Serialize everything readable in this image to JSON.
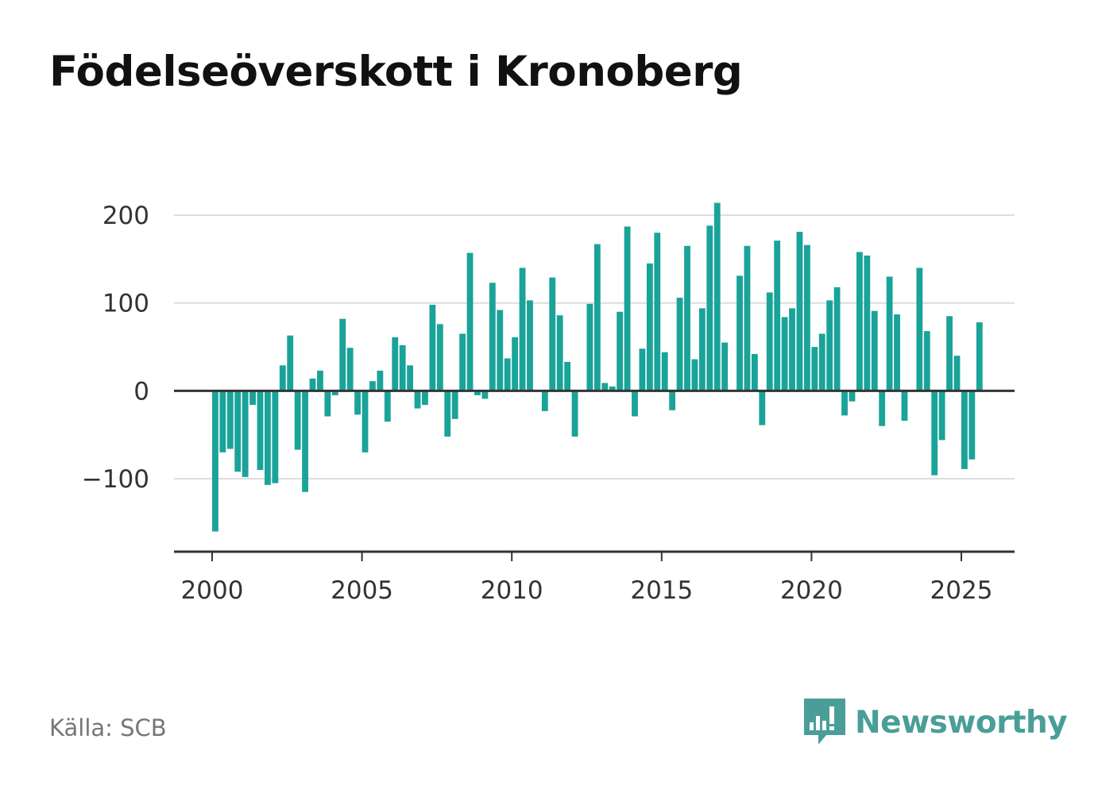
{
  "title": "Födelseöverskott i Kronoberg",
  "source": "Källa: SCB",
  "brand": {
    "name": "Newsworthy",
    "icon": "newsworthy-logo-icon",
    "color": "#4a9e98"
  },
  "chart_data": {
    "type": "bar",
    "title": "Födelseöverskott i Kronoberg",
    "xlabel": "",
    "ylabel": "",
    "frequency": "quarterly",
    "start_year": 2000,
    "start_quarter": 1,
    "values": [
      -160,
      -70,
      -66,
      -92,
      -98,
      -16,
      -90,
      -107,
      -105,
      29,
      63,
      -67,
      -115,
      14,
      23,
      -29,
      -5,
      82,
      49,
      -27,
      -70,
      11,
      23,
      -35,
      61,
      52,
      29,
      -20,
      -16,
      98,
      76,
      -52,
      -32,
      65,
      157,
      -5,
      -9,
      123,
      92,
      37,
      61,
      140,
      103,
      0,
      -23,
      129,
      86,
      33,
      -52,
      0,
      99,
      167,
      9,
      5,
      90,
      187,
      -29,
      48,
      145,
      180,
      44,
      -22,
      106,
      165,
      36,
      94,
      188,
      214,
      55,
      0,
      131,
      165,
      42,
      -39,
      112,
      171,
      84,
      94,
      181,
      166,
      50,
      65,
      103,
      118,
      -28,
      -12,
      158,
      154,
      91,
      -40,
      130,
      87,
      -34,
      0,
      140,
      68,
      -96,
      -56,
      85,
      40,
      -89,
      -78,
      78
    ],
    "ylim": [
      -183,
      228
    ],
    "yticks": [
      -100,
      0,
      100,
      200
    ],
    "ytick_labels": [
      "−100",
      "0",
      "100",
      "200"
    ],
    "xticks": [
      2000,
      2005,
      2010,
      2015,
      2020,
      2025
    ],
    "xtick_labels": [
      "2000",
      "2005",
      "2010",
      "2015",
      "2020",
      "2025"
    ],
    "grid": true,
    "legend": "none",
    "bar_color": "#1aa399"
  }
}
